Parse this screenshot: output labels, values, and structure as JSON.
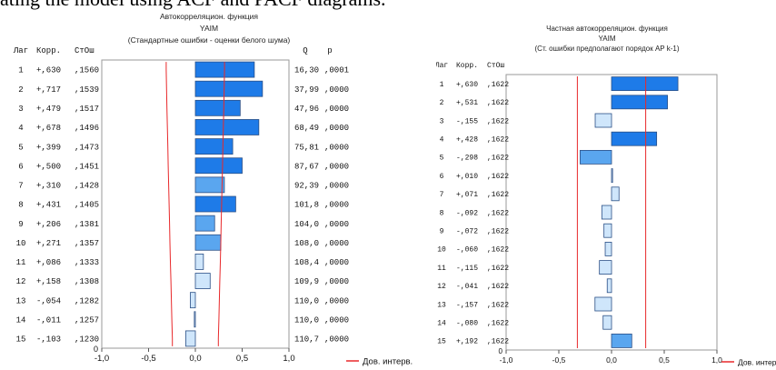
{
  "caption": "ating the model using ACF and PACF diagrams.",
  "charts": [
    {
      "type": "bar",
      "orientation": "horizontal",
      "title": "Автокорреляцион. функция",
      "subtitle": "YAIM",
      "note": "(Стандартные ошибки - оценки белого шума)",
      "headers": {
        "lag": "Лаг",
        "corr": "Корр.",
        "se": "СтОш",
        "q": "Q",
        "p": "p"
      },
      "legend": "Дов. интерв.",
      "xlim": [
        -1.0,
        1.0
      ],
      "xticks": [
        "-1,0",
        "-0,5",
        "0,0",
        "0,5",
        "1,0"
      ],
      "ylim": [
        0,
        15
      ],
      "yticks": [
        "0"
      ],
      "lags": [
        1,
        2,
        3,
        4,
        5,
        6,
        7,
        8,
        9,
        10,
        11,
        12,
        13,
        14,
        15
      ],
      "values": [
        0.63,
        0.717,
        0.479,
        0.678,
        0.399,
        0.5,
        0.31,
        0.431,
        0.206,
        0.271,
        0.086,
        0.158,
        -0.054,
        -0.011,
        -0.103
      ],
      "se": [
        0.156,
        0.1539,
        0.1517,
        0.1496,
        0.1473,
        0.1451,
        0.1428,
        0.1405,
        0.1381,
        0.1357,
        0.1333,
        0.1308,
        0.1282,
        0.1257,
        0.123
      ],
      "corr_text": [
        "+,630",
        "+,717",
        "+,479",
        "+,678",
        "+,399",
        "+,500",
        "+,310",
        "+,431",
        "+,206",
        "+,271",
        "+,086",
        "+,158",
        "-,054",
        "-,011",
        "-,103"
      ],
      "se_text": [
        ",1560",
        ",1539",
        ",1517",
        ",1496",
        ",1473",
        ",1451",
        ",1428",
        ",1405",
        ",1381",
        ",1357",
        ",1333",
        ",1308",
        ",1282",
        ",1257",
        ",1230"
      ],
      "q_text": [
        "16,30",
        "37,99",
        "47,96",
        "68,49",
        "75,81",
        "87,67",
        "92,39",
        "101,8",
        "104,0",
        "108,0",
        "108,4",
        "109,9",
        "110,0",
        "110,0",
        "110,7"
      ],
      "p_text": [
        ",0001",
        ",0000",
        ",0000",
        ",0000",
        ",0000",
        ",0000",
        ",0000",
        ",0000",
        ",0000",
        ",0000",
        ",0000",
        ",0000",
        ",0000",
        ",0000",
        ",0000"
      ],
      "colors": {
        "bar_dark": "#1e7be8",
        "bar_light": "#cfe6fb",
        "ci": "#e8282a"
      }
    },
    {
      "type": "bar",
      "orientation": "horizontal",
      "title": "Частная автокорреляцион. функция",
      "subtitle": "YAIM",
      "note": "(Ст. ошибки предполагают порядок AP k-1)",
      "headers": {
        "lag": "Лаг",
        "corr": "Корр.",
        "se": "СтОш"
      },
      "legend": "Дов. интерв",
      "xlim": [
        -1.0,
        1.0
      ],
      "xticks": [
        "-1,0",
        "-0,5",
        "0,0",
        "0,5",
        "1,0"
      ],
      "ylim": [
        0,
        15
      ],
      "yticks": [
        "0"
      ],
      "lags": [
        1,
        2,
        3,
        4,
        5,
        6,
        7,
        8,
        9,
        10,
        11,
        12,
        13,
        14,
        15
      ],
      "values": [
        0.63,
        0.531,
        -0.155,
        0.428,
        -0.298,
        0.01,
        0.071,
        -0.092,
        -0.072,
        -0.06,
        -0.115,
        -0.041,
        -0.157,
        -0.08,
        0.192
      ],
      "se": [
        0.1622,
        0.1622,
        0.1622,
        0.1622,
        0.1622,
        0.1622,
        0.1622,
        0.1622,
        0.1622,
        0.1622,
        0.1622,
        0.1622,
        0.1622,
        0.1622,
        0.1622
      ],
      "corr_text": [
        "+,630",
        "+,531",
        "-,155",
        "+,428",
        "-,298",
        "+,010",
        "+,071",
        "-,092",
        "-,072",
        "-,060",
        "-,115",
        "-,041",
        "-,157",
        "-,080",
        "+,192"
      ],
      "se_text": [
        ",1622",
        ",1622",
        ",1622",
        ",1622",
        ",1622",
        ",1622",
        ",1622",
        ",1622",
        ",1622",
        ",1622",
        ",1622",
        ",1622",
        ",1622",
        ",1622",
        ",1622"
      ],
      "colors": {
        "bar_dark": "#1e7be8",
        "bar_light": "#cfe6fb",
        "ci": "#e8282a"
      }
    }
  ]
}
